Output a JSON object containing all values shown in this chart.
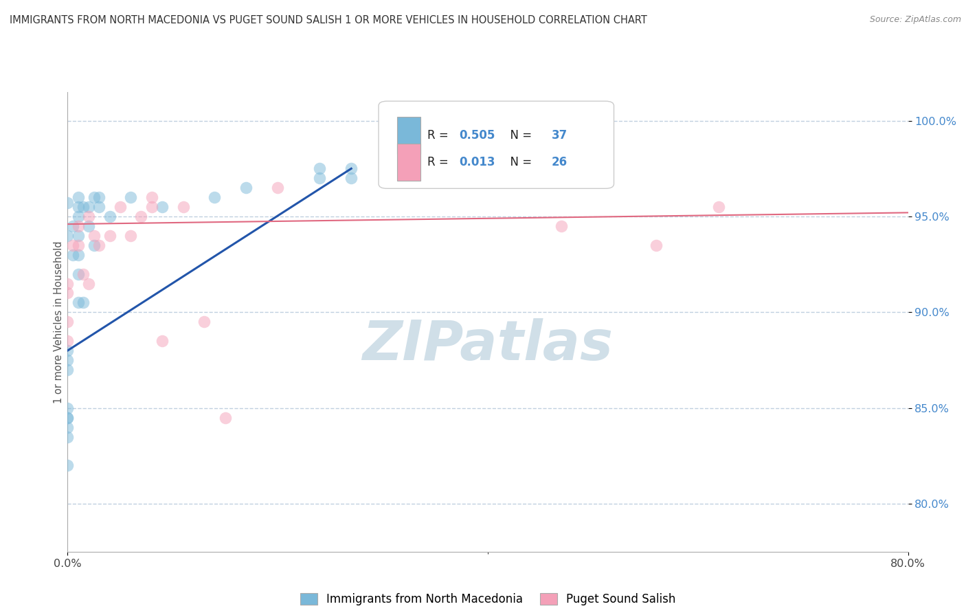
{
  "title": "IMMIGRANTS FROM NORTH MACEDONIA VS PUGET SOUND SALISH 1 OR MORE VEHICLES IN HOUSEHOLD CORRELATION CHART",
  "source": "Source: ZipAtlas.com",
  "ylabel": "1 or more Vehicles in Household",
  "ytick_labels": [
    "80.0%",
    "85.0%",
    "90.0%",
    "95.0%",
    "100.0%"
  ],
  "ytick_values": [
    0.8,
    0.85,
    0.9,
    0.95,
    1.0
  ],
  "xlim": [
    0.0,
    0.8
  ],
  "ylim": [
    0.775,
    1.015
  ],
  "legend1_label": "Immigrants from North Macedonia",
  "legend2_label": "Puget Sound Salish",
  "R1": "0.505",
  "N1": "37",
  "R2": "0.013",
  "N2": "26",
  "blue_color": "#7ab8d9",
  "pink_color": "#f4a0b8",
  "trendline_blue": "#2255aa",
  "trendline_pink": "#e06880",
  "text_blue": "#4488cc",
  "title_color": "#333333",
  "grid_color": "#c0d0e0",
  "watermark_color": "#d0dfe8",
  "blue_scatter_x": [
    0.0,
    0.0,
    0.0,
    0.0,
    0.0,
    0.0,
    0.0,
    0.0,
    0.0,
    0.0,
    0.0,
    0.005,
    0.005,
    0.01,
    0.01,
    0.01,
    0.01,
    0.01,
    0.01,
    0.01,
    0.015,
    0.015,
    0.02,
    0.02,
    0.025,
    0.025,
    0.03,
    0.03,
    0.04,
    0.06,
    0.09,
    0.14,
    0.17,
    0.24,
    0.24,
    0.27,
    0.27
  ],
  "blue_scatter_y": [
    0.82,
    0.835,
    0.84,
    0.845,
    0.845,
    0.85,
    0.87,
    0.875,
    0.88,
    0.94,
    0.957,
    0.93,
    0.945,
    0.905,
    0.92,
    0.93,
    0.94,
    0.95,
    0.955,
    0.96,
    0.905,
    0.955,
    0.945,
    0.955,
    0.935,
    0.96,
    0.955,
    0.96,
    0.95,
    0.96,
    0.955,
    0.96,
    0.965,
    0.97,
    0.975,
    0.97,
    0.975
  ],
  "pink_scatter_x": [
    0.0,
    0.0,
    0.0,
    0.0,
    0.005,
    0.01,
    0.01,
    0.015,
    0.02,
    0.02,
    0.025,
    0.03,
    0.04,
    0.05,
    0.06,
    0.07,
    0.08,
    0.08,
    0.09,
    0.11,
    0.13,
    0.15,
    0.2,
    0.47,
    0.56,
    0.62
  ],
  "pink_scatter_y": [
    0.885,
    0.895,
    0.91,
    0.915,
    0.935,
    0.935,
    0.945,
    0.92,
    0.915,
    0.95,
    0.94,
    0.935,
    0.94,
    0.955,
    0.94,
    0.95,
    0.955,
    0.96,
    0.885,
    0.955,
    0.895,
    0.845,
    0.965,
    0.945,
    0.935,
    0.955
  ],
  "blue_trend_x": [
    0.0,
    0.27
  ],
  "blue_trend_y": [
    0.88,
    0.975
  ],
  "pink_trend_x": [
    0.0,
    0.8
  ],
  "pink_trend_y": [
    0.946,
    0.952
  ],
  "marker_size": 160,
  "marker_alpha": 0.5
}
